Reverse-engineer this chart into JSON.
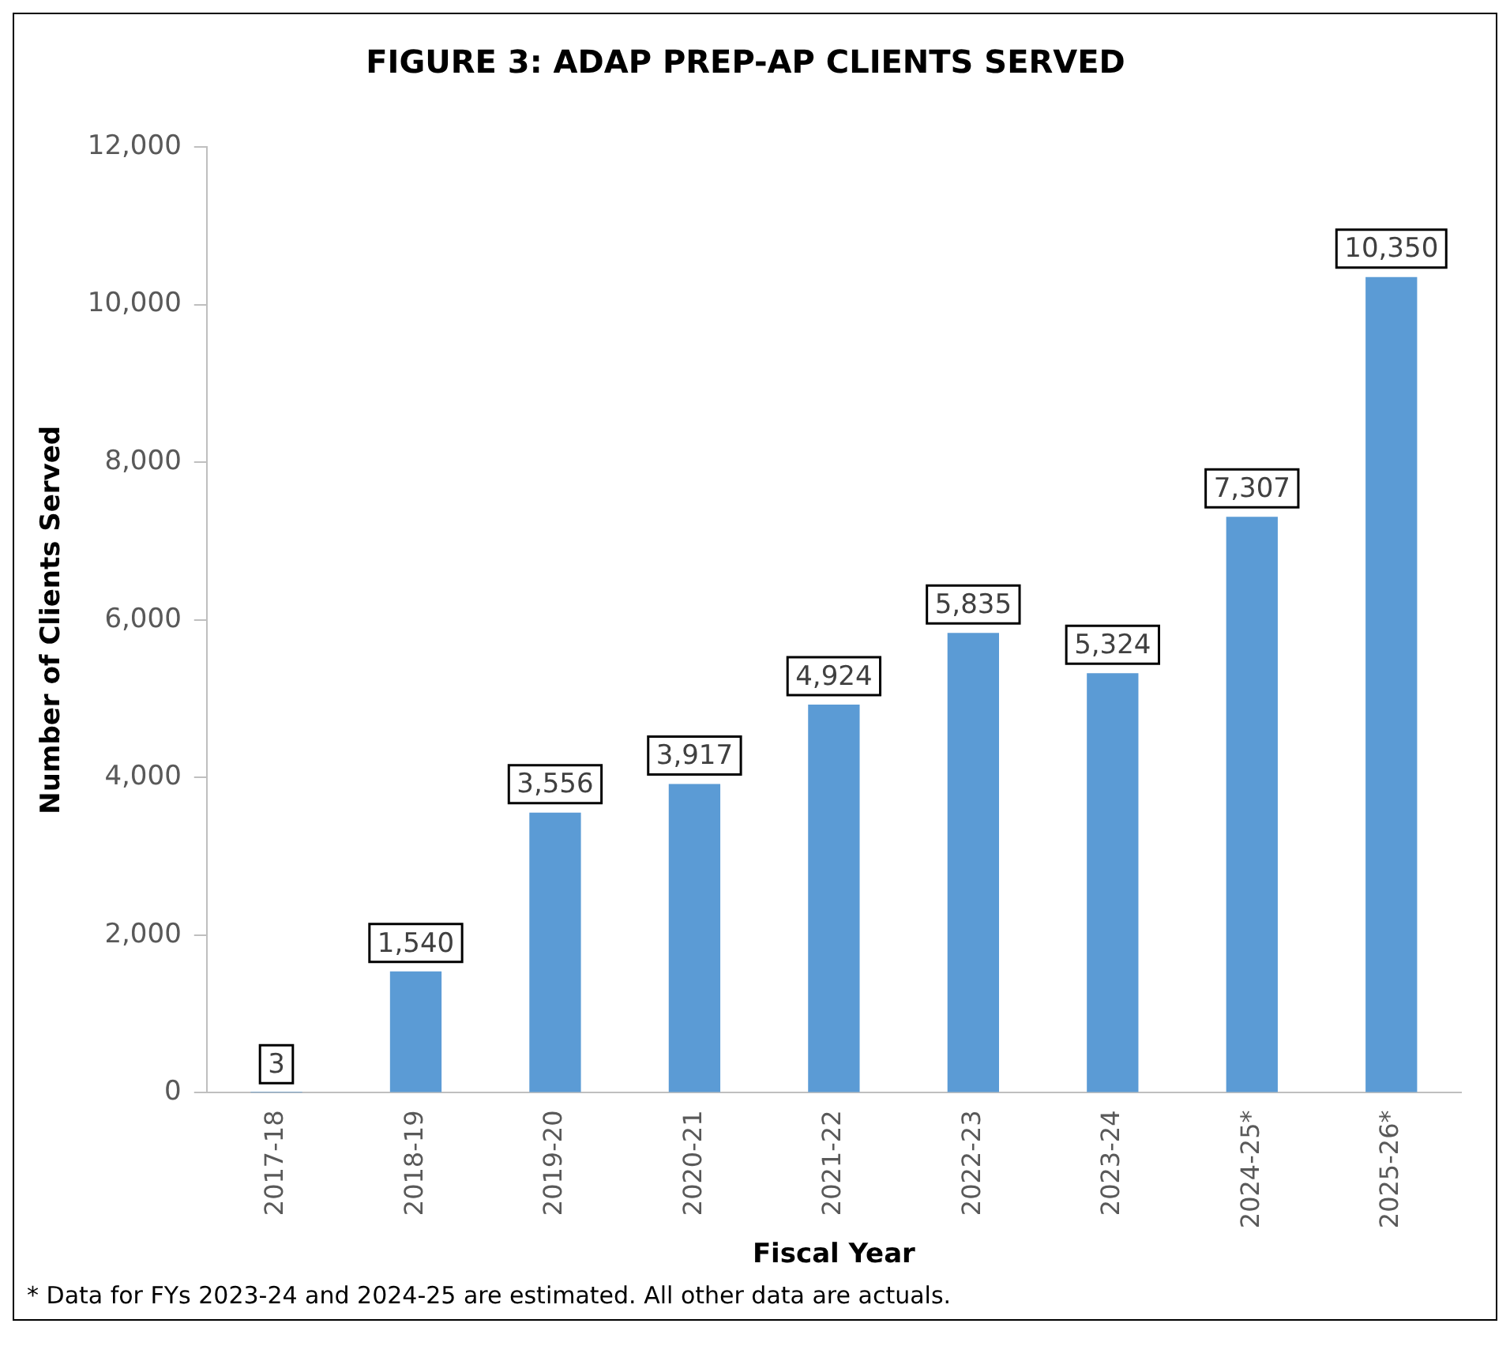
{
  "chart_data": {
    "type": "bar",
    "title": "FIGURE 3: ADAP PREP-AP CLIENTS SERVED",
    "xlabel": "Fiscal Year",
    "ylabel": "Number of Clients Served",
    "categories": [
      "2017-18",
      "2018-19",
      "2019-20",
      "2020-21",
      "2021-22",
      "2022-23",
      "2023-24",
      "2024-25*",
      "2025-26*"
    ],
    "values": [
      3,
      1540,
      3556,
      3917,
      4924,
      5835,
      5324,
      7307,
      10350
    ],
    "value_labels": [
      "3",
      "1,540",
      "3,556",
      "3,917",
      "4,924",
      "5,835",
      "5,324",
      "7,307",
      "10,350"
    ],
    "color": "#5b9bd5",
    "ylim": [
      0,
      12000
    ],
    "yticks": [
      {
        "value": 0,
        "label": "0"
      },
      {
        "value": 2000,
        "label": "2,000"
      },
      {
        "value": 4000,
        "label": "4,000"
      },
      {
        "value": 6000,
        "label": "6,000"
      },
      {
        "value": 8000,
        "label": "8,000"
      },
      {
        "value": 10000,
        "label": "10,000"
      },
      {
        "value": 12000,
        "label": "12,000"
      }
    ],
    "grid": false,
    "legend": false,
    "annotations": [
      "* Data for FYs 2023-24 and 2024-25 are estimated.  All other data are actuals."
    ]
  }
}
